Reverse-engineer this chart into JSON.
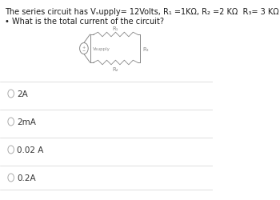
{
  "title_line1": "The series circuit has V",
  "title_supply": "supply",
  "title_line2": "= 12Volts, R₁ =1KΩ, R₂ =2 KΩ  R₃= 3 KΩ ;",
  "subtitle": "• What is the total current of the circuit?",
  "options": [
    "2A",
    "2mA",
    "0.02 A",
    "0.2A"
  ],
  "bg_color": "#ffffff",
  "text_color": "#1a1a1a",
  "option_color": "#333333",
  "divider_color": "#d0d0d0",
  "circuit_color": "#888888",
  "title_fontsize": 7.0,
  "subtitle_fontsize": 7.0,
  "option_fontsize": 7.5,
  "label_fontsize": 5.0
}
